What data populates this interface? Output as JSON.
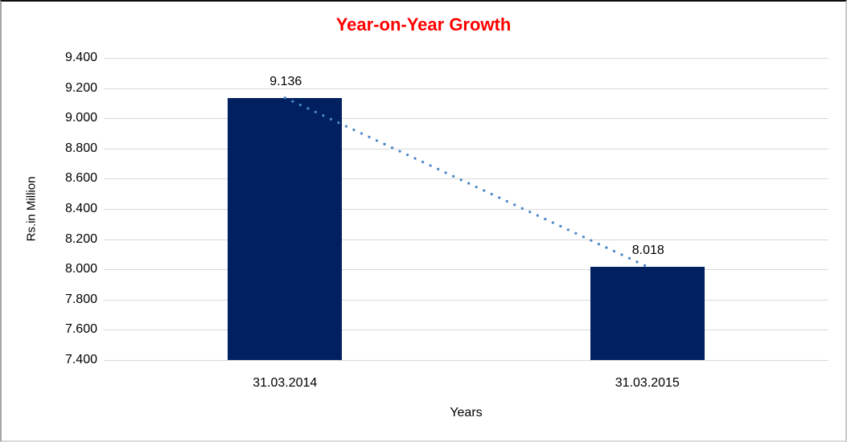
{
  "chart": {
    "title": "Year-on-Year Growth",
    "ylabel": "Rs.in Million",
    "xlabel": "Years"
  },
  "chart_data": {
    "type": "bar",
    "title": "Year-on-Year Growth",
    "xlabel": "Years",
    "ylabel": "Rs.in Million",
    "categories": [
      "31.03.2014",
      "31.03.2015"
    ],
    "values": [
      9.136,
      8.018
    ],
    "data_labels": [
      "9.136",
      "8.018"
    ],
    "ylim": [
      7.4,
      9.4
    ],
    "ytick_labels": [
      "9.400",
      "9.200",
      "9.000",
      "8.800",
      "8.600",
      "8.400",
      "8.200",
      "8.000",
      "7.800",
      "7.600",
      "7.400"
    ],
    "grid": true,
    "legend": "none",
    "trendline": {
      "style": "dotted",
      "connects": [
        "31.03.2014",
        "31.03.2015"
      ]
    },
    "colors": {
      "bar": "#002060",
      "trendline": "#4a86c8",
      "gridline": "#d9d9d9",
      "title": "#ff0000",
      "text": "#000000"
    }
  }
}
